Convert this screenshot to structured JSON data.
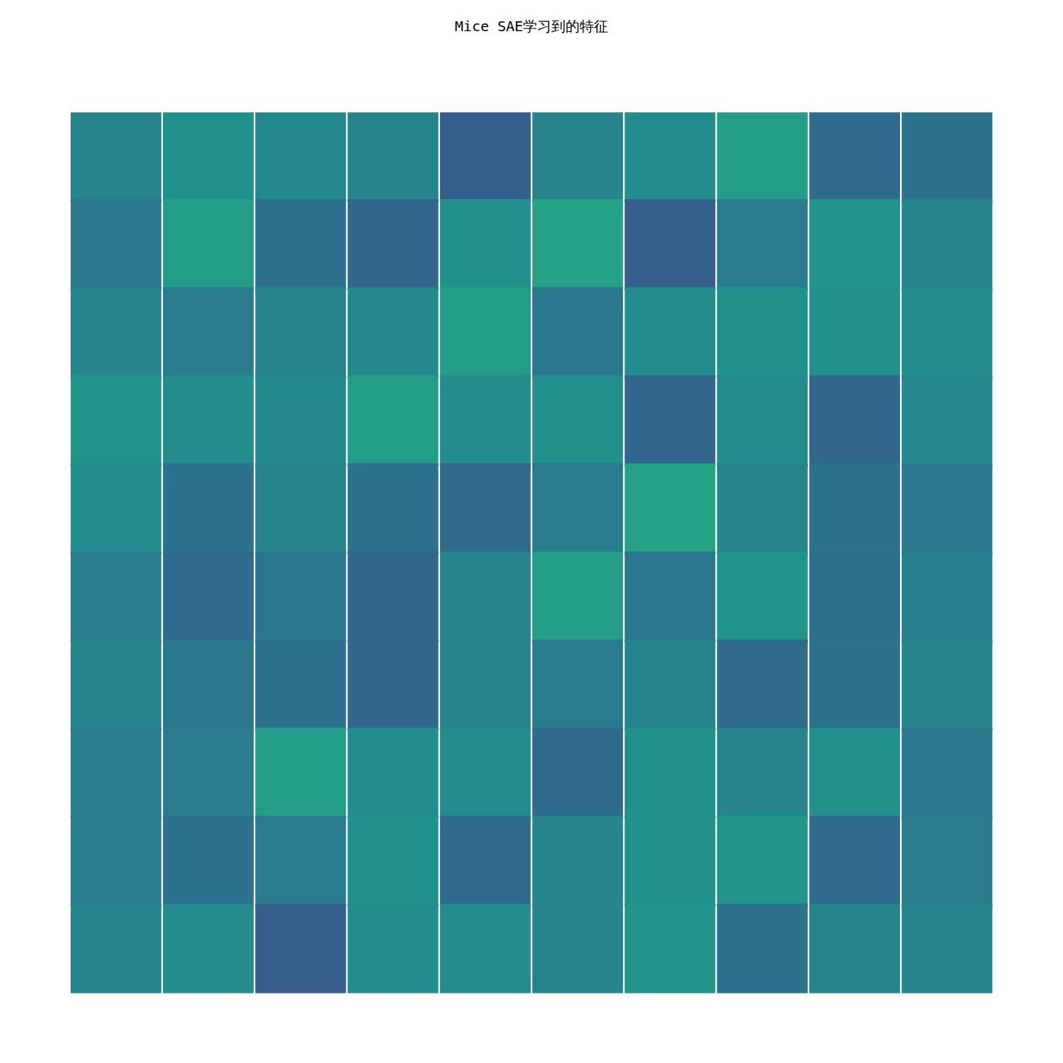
{
  "chart_data": {
    "type": "heatmap",
    "title": "Mice SAE学习到的特征",
    "tick_labels": false,
    "grid": false,
    "color_range": [
      0,
      1
    ],
    "tiles": [
      [
        0.45,
        0.5,
        0.47,
        0.45,
        0.3,
        0.45,
        0.48,
        0.55,
        0.35,
        0.38
      ],
      [
        0.4,
        0.55,
        0.38,
        0.33,
        0.5,
        0.58,
        0.3,
        0.42,
        0.52,
        0.45
      ],
      [
        0.45,
        0.42,
        0.45,
        0.47,
        0.55,
        0.4,
        0.48,
        0.5,
        0.5,
        0.48
      ],
      [
        0.52,
        0.48,
        0.47,
        0.55,
        0.48,
        0.5,
        0.33,
        0.48,
        0.33,
        0.47
      ],
      [
        0.48,
        0.38,
        0.45,
        0.38,
        0.35,
        0.42,
        0.58,
        0.45,
        0.38,
        0.4
      ],
      [
        0.42,
        0.35,
        0.4,
        0.33,
        0.45,
        0.55,
        0.4,
        0.52,
        0.37,
        0.43
      ],
      [
        0.45,
        0.4,
        0.38,
        0.33,
        0.45,
        0.42,
        0.45,
        0.35,
        0.38,
        0.45
      ],
      [
        0.42,
        0.42,
        0.55,
        0.48,
        0.48,
        0.35,
        0.5,
        0.45,
        0.5,
        0.4
      ],
      [
        0.42,
        0.38,
        0.42,
        0.5,
        0.35,
        0.45,
        0.5,
        0.53,
        0.35,
        0.42
      ],
      [
        0.45,
        0.48,
        0.3,
        0.48,
        0.48,
        0.45,
        0.52,
        0.38,
        0.45,
        0.45
      ]
    ]
  }
}
